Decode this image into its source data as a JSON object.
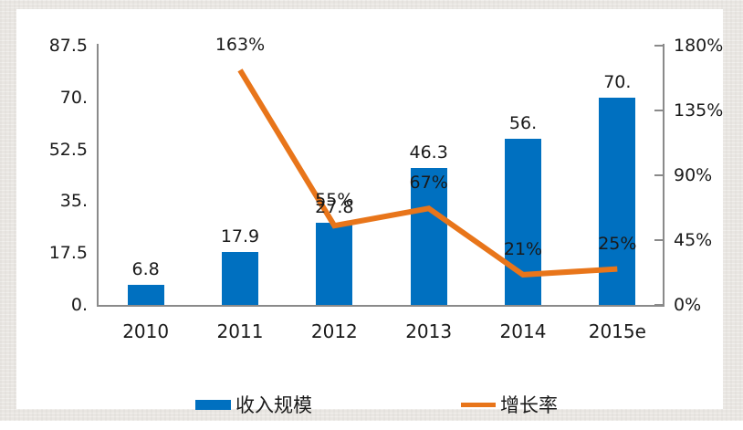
{
  "chart_data": {
    "type": "bar",
    "combo": "bar+line",
    "categories": [
      "2010",
      "2011",
      "2012",
      "2013",
      "2014",
      "2015e"
    ],
    "series": [
      {
        "name": "收入规模",
        "type": "bar",
        "axis": "left",
        "values": [
          6.8,
          17.9,
          27.8,
          46.3,
          56,
          70
        ],
        "labels": [
          "6.8",
          "17.9",
          "27.8",
          "46.3",
          "56.",
          "70."
        ]
      },
      {
        "name": "增长率",
        "type": "line",
        "axis": "right",
        "category_indexes": [
          1,
          2,
          3,
          4,
          5
        ],
        "values": [
          163,
          55,
          67,
          21,
          25
        ],
        "labels": [
          "163%",
          "55%",
          "67%",
          "21%",
          "25%"
        ]
      }
    ],
    "left_axis": {
      "min": 0,
      "max": 87.5,
      "tick_labels": [
        "87.5",
        "70.",
        "52.5",
        "35.",
        "17.5",
        "0."
      ]
    },
    "right_axis": {
      "min": 0,
      "max": 180,
      "tick_labels": [
        "180%",
        "135%",
        "90%",
        "45%",
        "0%"
      ]
    },
    "grid": "off",
    "legend_position": "bottom",
    "legend": [
      {
        "label": "收入规模",
        "swatch": "bar-swatch"
      },
      {
        "label": "增长率",
        "swatch": "line-swatch"
      }
    ],
    "colors": {
      "bar": "#0070C0",
      "line": "#E8751A",
      "axis": "#8A8A8A",
      "text": "#1A1A1A",
      "plot_background": "#FFFFFF",
      "page_background": "#E9E6E2"
    }
  }
}
